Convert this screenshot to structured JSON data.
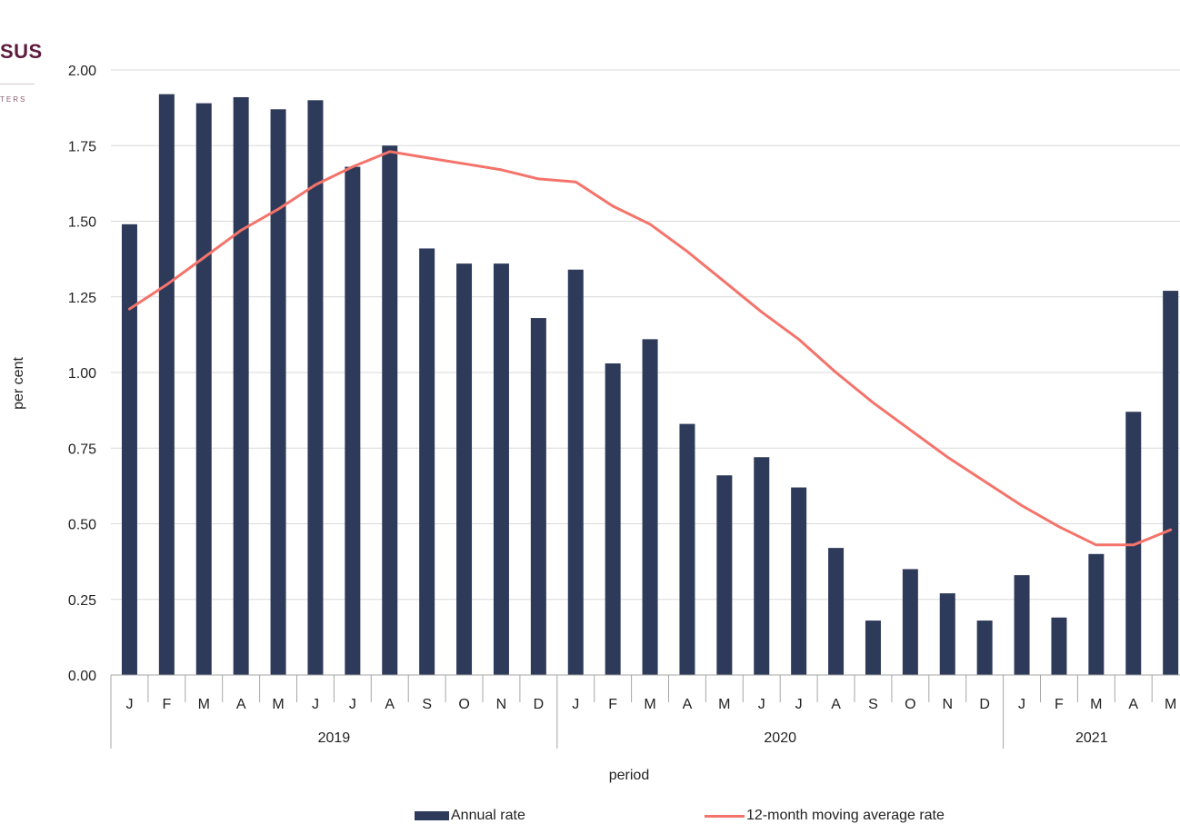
{
  "logo": {
    "text": "SUS",
    "subtext": "TERS"
  },
  "colors": {
    "bars": "#2e3a5a",
    "line": "#f4736a",
    "grid": "#d9d9d9",
    "axis": "#a6a6a6"
  },
  "chart_data": {
    "type": "bar",
    "title": "",
    "xlabel": "period",
    "ylabel": "per cent",
    "ylim": [
      0,
      2
    ],
    "yticks": [
      "0.00",
      "0.25",
      "0.50",
      "0.75",
      "1.00",
      "1.25",
      "1.50",
      "1.75",
      "2.00"
    ],
    "categories": [
      "J",
      "F",
      "M",
      "A",
      "M",
      "J",
      "J",
      "A",
      "S",
      "O",
      "N",
      "D",
      "J",
      "F",
      "M",
      "A",
      "M",
      "J",
      "J",
      "A",
      "S",
      "O",
      "N",
      "D",
      "J",
      "F",
      "M",
      "A",
      "M"
    ],
    "years": [
      {
        "label": "2019",
        "count": 12
      },
      {
        "label": "2020",
        "count": 12
      },
      {
        "label": "2021",
        "count": 5
      }
    ],
    "grid": true,
    "legend_position": "bottom",
    "series": [
      {
        "name": "Annual rate",
        "type": "bar",
        "values": [
          1.49,
          1.92,
          1.89,
          1.91,
          1.87,
          1.9,
          1.68,
          1.75,
          1.41,
          1.36,
          1.36,
          1.18,
          1.34,
          1.03,
          1.11,
          0.83,
          0.66,
          0.72,
          0.62,
          0.42,
          0.18,
          0.35,
          0.27,
          0.18,
          0.33,
          0.19,
          0.4,
          0.87,
          1.27
        ]
      },
      {
        "name": "12-month moving average rate",
        "type": "line",
        "values": [
          1.21,
          1.29,
          1.38,
          1.47,
          1.54,
          1.62,
          1.68,
          1.73,
          1.71,
          1.69,
          1.67,
          1.64,
          1.63,
          1.55,
          1.49,
          1.4,
          1.3,
          1.2,
          1.11,
          1.0,
          0.9,
          0.81,
          0.72,
          0.64,
          0.56,
          0.49,
          0.43,
          0.43,
          0.48
        ]
      }
    ]
  }
}
